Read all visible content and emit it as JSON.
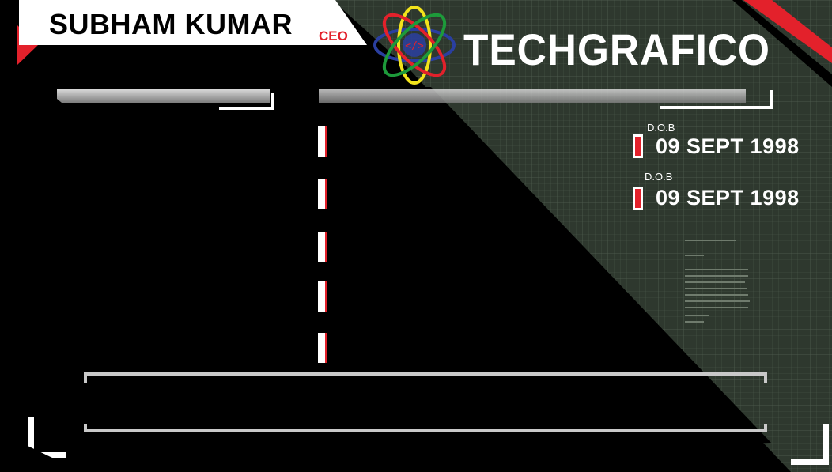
{
  "card": {
    "name": "SUBHAM KUMAR",
    "role": "CEO",
    "brand": "TECHGRAFICO",
    "logo_glyph": "</>"
  },
  "details": [
    {
      "label": "D.O.B",
      "value": "09 SEPT 1998"
    },
    {
      "label": "D.O.B",
      "value": "09 SEPT 1998"
    }
  ],
  "colors": {
    "accent_red": "#e3212b",
    "panel_green": "#2f3a2f",
    "white": "#ffffff",
    "logo_ring_1": "#e3212b",
    "logo_ring_2": "#1d9a3a",
    "logo_ring_3": "#f2e31b",
    "logo_ring_4": "#2a3fa0"
  },
  "icons": [
    "atom-logo-icon",
    "code-brackets-icon"
  ]
}
